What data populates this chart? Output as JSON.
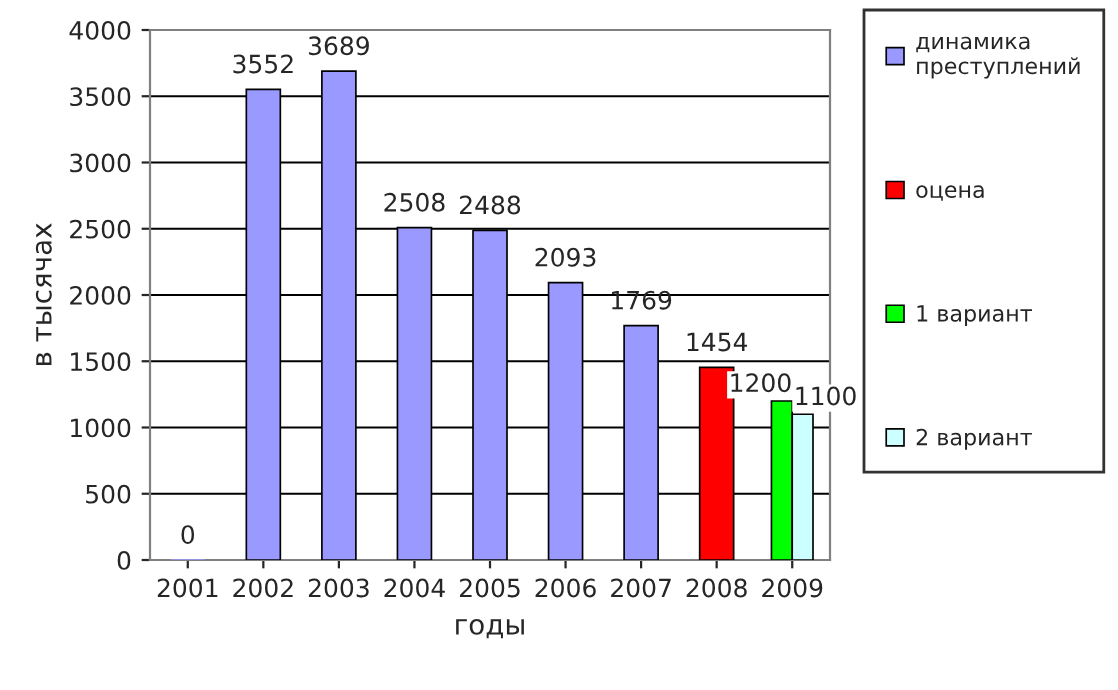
{
  "chart_data": {
    "type": "bar",
    "xlabel": "годы",
    "ylabel": "в тысячах",
    "categories": [
      "2001",
      "2002",
      "2003",
      "2004",
      "2005",
      "2006",
      "2007",
      "2008",
      "2009"
    ],
    "series": [
      {
        "name": "динамика преступлений",
        "color": "#9999ff",
        "values": [
          0,
          3552,
          3689,
          2508,
          2488,
          2093,
          1769,
          null,
          null
        ]
      },
      {
        "name": "оцена",
        "color": "#ff0000",
        "values": [
          null,
          null,
          null,
          null,
          null,
          null,
          null,
          1454,
          null
        ]
      },
      {
        "name": "1 вариант",
        "color": "#00ff00",
        "values": [
          null,
          null,
          null,
          null,
          null,
          null,
          null,
          null,
          1200
        ]
      },
      {
        "name": "2 вариант",
        "color": "#ccffff",
        "values": [
          null,
          null,
          null,
          null,
          null,
          null,
          null,
          null,
          1100
        ]
      }
    ],
    "ylim": [
      0,
      4000
    ],
    "yticks": [
      0,
      500,
      1000,
      1500,
      2000,
      2500,
      3000,
      3500,
      4000
    ],
    "grid": "y",
    "legend": "right",
    "data_labels": true
  }
}
